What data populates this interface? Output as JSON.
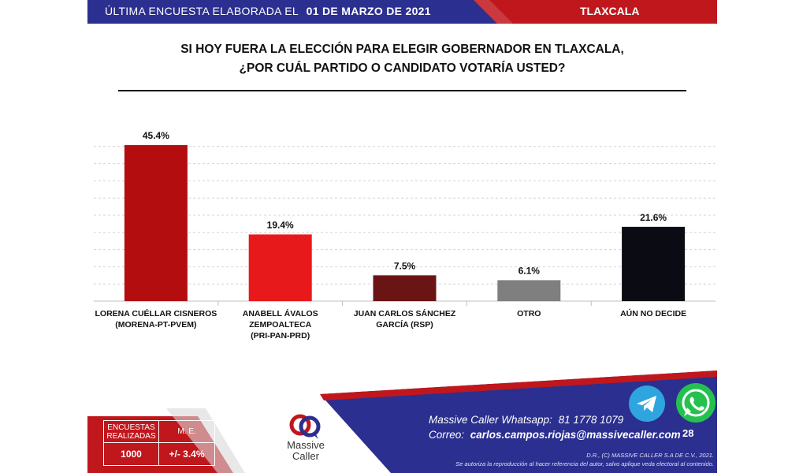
{
  "header": {
    "prefix": "ÚLTIMA ENCUESTA ELABORADA EL",
    "date": "01 DE MARZO DE 2021",
    "region": "TLAXCALA"
  },
  "question": {
    "line1": "SI HOY FUERA LA ELECCIÓN PARA ELEGIR GOBERNADOR EN TLAXCALA,",
    "line2": "¿POR CUÁL PARTIDO O CANDIDATO VOTARÍA USTED?"
  },
  "chart_data": {
    "type": "bar",
    "categories": [
      [
        "LORENA CUÉLLAR CISNEROS",
        "(MORENA-PT-PVEM)"
      ],
      [
        "ANABELL ÁVALOS",
        "ZEMPOALTECA",
        "(PRI-PAN-PRD)"
      ],
      [
        "JUAN CARLOS SÁNCHEZ",
        "GARCÍA (RSP)"
      ],
      [
        "OTRO"
      ],
      [
        "AÚN NO DECIDE"
      ]
    ],
    "values": [
      45.4,
      19.4,
      7.5,
      6.1,
      21.6
    ],
    "value_labels": [
      "45.4%",
      "19.4%",
      "7.5%",
      "6.1%",
      "21.6%"
    ],
    "colors": [
      "#b30d10",
      "#e8191b",
      "#6b1414",
      "#7f7f7f",
      "#0b0b14"
    ],
    "ylim": [
      0,
      50
    ],
    "grid": true
  },
  "footer": {
    "table": {
      "col1_line1": "ENCUESTAS",
      "col1_line2": "REALIZADAS",
      "col2": "M. E.",
      "val1": "1000",
      "val2": "+/- 3.4%"
    },
    "brand_line1": "Massive",
    "brand_line2": "Caller",
    "whatsapp_label": "Massive Caller Whatsapp:",
    "whatsapp_number": "81 1778 1079",
    "email_label": "Correo:",
    "email": "carlos.campos.riojas@massivecaller.com",
    "copyright": "D.R., (C) MASSIVE CALLER S.A DE C.V., 2021.",
    "disclaimer": "Se autoriza la reproducción al hacer referencia del autor, salvo aplique veda electoral al contenido.",
    "page_number": "28",
    "colors": {
      "navy": "#2b2f8f",
      "red": "#c0171d"
    }
  },
  "icons": {
    "telegram": "telegram-icon",
    "whatsapp": "whatsapp-icon"
  }
}
